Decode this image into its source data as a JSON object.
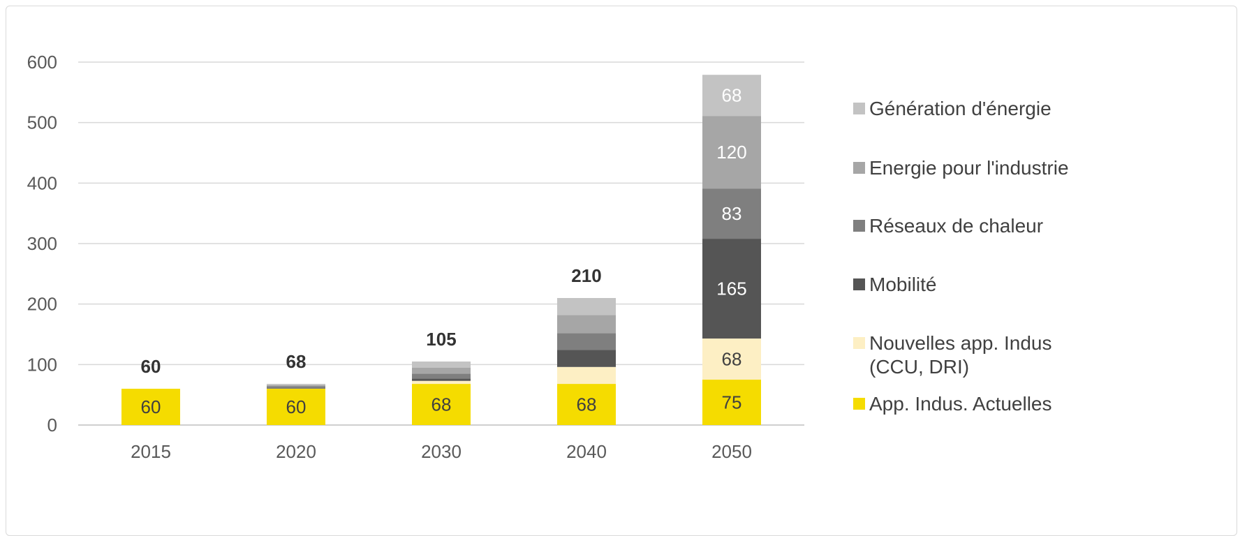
{
  "chart_data": {
    "type": "bar",
    "stacked": true,
    "categories": [
      "2015",
      "2020",
      "2030",
      "2040",
      "2050"
    ],
    "ylim": [
      0,
      600
    ],
    "yticks": [
      0,
      100,
      200,
      300,
      400,
      500,
      600
    ],
    "totals": [
      60,
      68,
      105,
      210,
      null
    ],
    "grid": true,
    "legend_position": "right",
    "series": [
      {
        "name": "App. Indus. Actuelles",
        "color": "#f5dc00",
        "values": [
          60,
          60,
          68,
          68,
          75
        ],
        "labels": [
          "60",
          "60",
          "68",
          "68",
          "75"
        ],
        "label_color": "#404040"
      },
      {
        "name": "Nouvelles app. Indus\n(CCU, DRI)",
        "color": "#fdefc4",
        "values": [
          0,
          0,
          5,
          28,
          68
        ],
        "labels": [
          "",
          "",
          "",
          "",
          "68"
        ],
        "label_color": "#404040"
      },
      {
        "name": "Mobilité",
        "color": "#555555",
        "values": [
          0,
          0,
          4,
          28,
          165
        ],
        "labels": [
          "",
          "",
          "",
          "",
          "165"
        ],
        "label_color": "#ffffff"
      },
      {
        "name": "Réseaux de chaleur",
        "color": "#7f7f7f",
        "values": [
          0,
          4,
          8,
          28,
          83
        ],
        "labels": [
          "",
          "",
          "",
          "",
          "83"
        ],
        "label_color": "#ffffff"
      },
      {
        "name": "Energie pour l'industrie",
        "color": "#a6a6a6",
        "values": [
          0,
          2,
          10,
          30,
          120
        ],
        "labels": [
          "",
          "",
          "",
          "",
          "120"
        ],
        "label_color": "#ffffff"
      },
      {
        "name": "Génération d'énergie",
        "color": "#c3c3c3",
        "values": [
          0,
          2,
          10,
          28,
          68
        ],
        "labels": [
          "",
          "",
          "",
          "",
          "68"
        ],
        "label_color": "#ffffff"
      }
    ]
  }
}
